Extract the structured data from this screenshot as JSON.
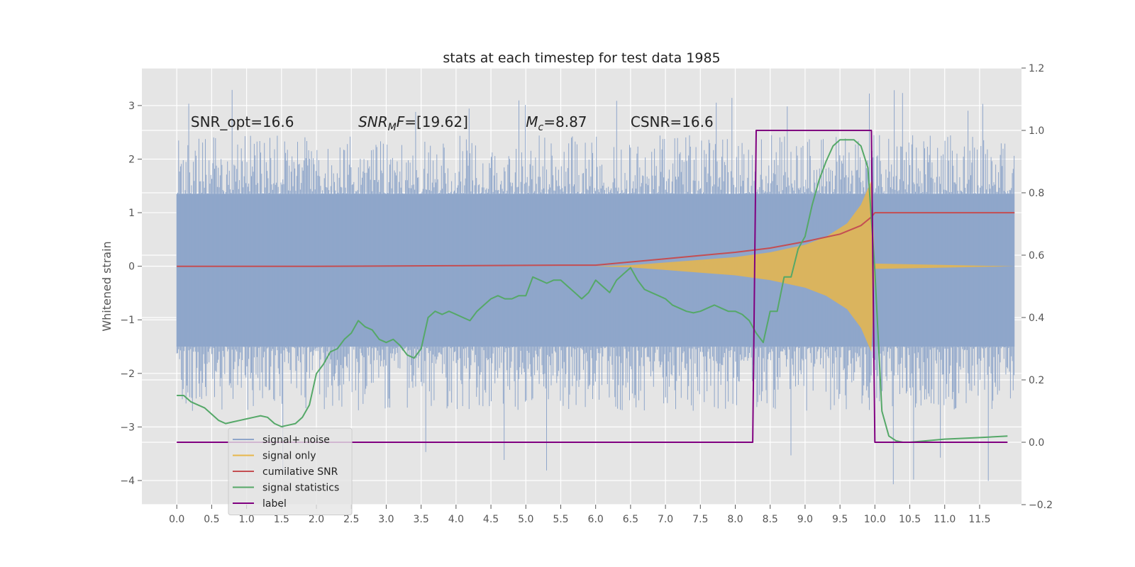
{
  "chart_data": {
    "type": "line",
    "title": "stats at each timestep for test data 1985",
    "ylabel": "Whitened strain",
    "xlim": [
      -0.5,
      12.1
    ],
    "ylim": [
      -4.45,
      3.7
    ],
    "y2lim": [
      -0.2,
      1.2
    ],
    "grid": true,
    "legend_position": "lower-left",
    "x_ticks": [
      0.0,
      0.5,
      1.0,
      1.5,
      2.0,
      2.5,
      3.0,
      3.5,
      4.0,
      4.5,
      5.0,
      5.5,
      6.0,
      6.5,
      7.0,
      7.5,
      8.0,
      8.5,
      9.0,
      9.5,
      10.0,
      10.5,
      11.0,
      11.5
    ],
    "x_tick_labels": [
      "0.0",
      "0.5",
      "1.0",
      "1.5",
      "2.0",
      "2.5",
      "3.0",
      "3.5",
      "4.0",
      "4.5",
      "5.0",
      "5.5",
      "6.0",
      "6.5",
      "7.0",
      "7.5",
      "8.0",
      "8.5",
      "9.0",
      "9.5",
      "10.0",
      "10.5",
      "11.0",
      "11.5"
    ],
    "y_ticks": [
      -4,
      -3,
      -2,
      -1,
      0,
      1,
      2,
      3
    ],
    "y_tick_labels": [
      "−4",
      "−3",
      "−2",
      "−1",
      "0",
      "1",
      "2",
      "3"
    ],
    "y2_ticks": [
      -0.2,
      0.0,
      0.2,
      0.4,
      0.6,
      0.8,
      1.0,
      1.2
    ],
    "y2_tick_labels": [
      "−0.2",
      "0.0",
      "0.2",
      "0.4",
      "0.6",
      "0.8",
      "1.0",
      "1.2"
    ],
    "annotations": [
      {
        "pre": "SNR_opt=16.6",
        "base": "",
        "sub": "",
        "post": "",
        "x": 0.2,
        "y": 2.6
      },
      {
        "pre": "",
        "base": "SNR",
        "sub": "M",
        "post": "F=[19.62]",
        "x": 2.6,
        "y": 2.6
      },
      {
        "pre": "",
        "base": "M",
        "sub": "c",
        "post": "=8.87",
        "x": 5.0,
        "y": 2.6
      },
      {
        "pre": "CSNR=16.6",
        "base": "",
        "sub": "",
        "post": "",
        "x": 6.5,
        "y": 2.6
      }
    ],
    "series": [
      {
        "name": "signal+ noise",
        "color": "#8fa6ca",
        "axis": "left",
        "render": "dense-noise",
        "x_range": [
          0.0,
          12.0
        ],
        "band": [
          -1.5,
          1.35
        ],
        "spike_range": [
          -4.1,
          3.35
        ]
      },
      {
        "name": "signal only",
        "color": "#e8b64b",
        "axis": "left",
        "render": "chirp-envelope",
        "x": [
          6.0,
          6.5,
          7.0,
          7.5,
          8.0,
          8.5,
          9.0,
          9.3,
          9.6,
          9.8,
          9.95,
          10.0,
          12.0
        ],
        "envelope": [
          0.0,
          0.02,
          0.07,
          0.12,
          0.17,
          0.26,
          0.4,
          0.55,
          0.8,
          1.15,
          1.6,
          0.05,
          0.0
        ]
      },
      {
        "name": "cumilative SNR",
        "color": "#c44e52",
        "axis": "left",
        "x": [
          0.0,
          2.0,
          4.0,
          5.5,
          6.0,
          6.5,
          7.0,
          7.5,
          8.0,
          8.5,
          9.0,
          9.5,
          9.8,
          9.95,
          10.0,
          11.0,
          12.0
        ],
        "y": [
          0.0,
          0.0,
          0.01,
          0.02,
          0.02,
          0.08,
          0.14,
          0.2,
          0.26,
          0.34,
          0.46,
          0.6,
          0.76,
          0.92,
          1.0,
          1.0,
          1.0
        ]
      },
      {
        "name": "signal statistics",
        "color": "#55a868",
        "axis": "right",
        "x": [
          0.0,
          0.1,
          0.2,
          0.3,
          0.4,
          0.5,
          0.6,
          0.7,
          0.8,
          0.9,
          1.0,
          1.1,
          1.2,
          1.3,
          1.4,
          1.5,
          1.6,
          1.7,
          1.8,
          1.9,
          2.0,
          2.1,
          2.2,
          2.3,
          2.4,
          2.5,
          2.6,
          2.7,
          2.8,
          2.9,
          3.0,
          3.1,
          3.2,
          3.3,
          3.4,
          3.5,
          3.6,
          3.7,
          3.8,
          3.9,
          4.0,
          4.1,
          4.2,
          4.3,
          4.4,
          4.5,
          4.6,
          4.7,
          4.8,
          4.9,
          5.0,
          5.1,
          5.2,
          5.3,
          5.4,
          5.5,
          5.6,
          5.7,
          5.8,
          5.9,
          6.0,
          6.1,
          6.2,
          6.3,
          6.4,
          6.5,
          6.6,
          6.7,
          6.8,
          6.9,
          7.0,
          7.1,
          7.2,
          7.3,
          7.4,
          7.5,
          7.6,
          7.7,
          7.8,
          7.9,
          8.0,
          8.1,
          8.2,
          8.3,
          8.4,
          8.5,
          8.6,
          8.7,
          8.8,
          8.9,
          9.0,
          9.1,
          9.2,
          9.3,
          9.4,
          9.5,
          9.6,
          9.7,
          9.8,
          9.9,
          10.0,
          10.1,
          10.2,
          10.3,
          10.4,
          10.5,
          11.0,
          11.5,
          11.9
        ],
        "y": [
          0.15,
          0.15,
          0.13,
          0.12,
          0.11,
          0.09,
          0.07,
          0.06,
          0.065,
          0.07,
          0.075,
          0.08,
          0.085,
          0.08,
          0.06,
          0.05,
          0.055,
          0.06,
          0.08,
          0.12,
          0.22,
          0.25,
          0.29,
          0.3,
          0.33,
          0.35,
          0.39,
          0.37,
          0.36,
          0.33,
          0.32,
          0.33,
          0.31,
          0.28,
          0.27,
          0.3,
          0.4,
          0.42,
          0.41,
          0.42,
          0.41,
          0.4,
          0.39,
          0.42,
          0.44,
          0.46,
          0.47,
          0.46,
          0.46,
          0.47,
          0.47,
          0.53,
          0.52,
          0.51,
          0.52,
          0.52,
          0.5,
          0.48,
          0.46,
          0.48,
          0.52,
          0.5,
          0.48,
          0.52,
          0.54,
          0.56,
          0.52,
          0.49,
          0.48,
          0.47,
          0.46,
          0.44,
          0.43,
          0.42,
          0.415,
          0.42,
          0.43,
          0.44,
          0.43,
          0.42,
          0.42,
          0.41,
          0.39,
          0.35,
          0.32,
          0.42,
          0.42,
          0.53,
          0.53,
          0.62,
          0.66,
          0.76,
          0.84,
          0.9,
          0.95,
          0.97,
          0.97,
          0.97,
          0.95,
          0.88,
          0.55,
          0.1,
          0.02,
          0.005,
          0.0,
          0.0,
          0.01,
          0.015,
          0.02
        ]
      },
      {
        "name": "label",
        "color": "#800080",
        "axis": "right",
        "x": [
          0.0,
          8.25,
          8.3,
          9.95,
          10.0,
          11.9
        ],
        "y": [
          0.0,
          0.0,
          1.0,
          1.0,
          0.0,
          0.0
        ]
      }
    ]
  }
}
